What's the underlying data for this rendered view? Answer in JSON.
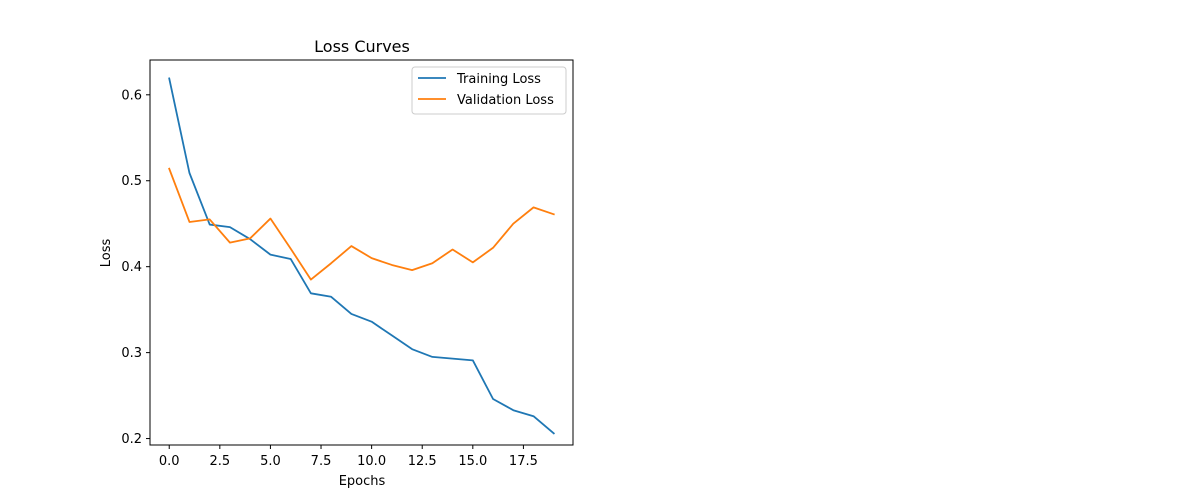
{
  "chart_data": {
    "type": "line",
    "title": "Loss Curves",
    "xlabel": "Epochs",
    "ylabel": "Loss",
    "xlim": [
      -0.95,
      19.95
    ],
    "ylim": [
      0.1925,
      0.6405
    ],
    "xticks": [
      0,
      2.5,
      5,
      7.5,
      10,
      12.5,
      15,
      17.5
    ],
    "xtick_labels": [
      "0.0",
      "2.5",
      "5.0",
      "7.5",
      "10.0",
      "12.5",
      "15.0",
      "17.5"
    ],
    "yticks": [
      0.2,
      0.3,
      0.4,
      0.5,
      0.6
    ],
    "ytick_labels": [
      "0.2",
      "0.3",
      "0.4",
      "0.5",
      "0.6"
    ],
    "grid": false,
    "legend_position": "top-right",
    "x": [
      0,
      1,
      2,
      3,
      4,
      5,
      6,
      7,
      8,
      9,
      10,
      11,
      12,
      13,
      14,
      15,
      16,
      17,
      18,
      19
    ],
    "series": [
      {
        "name": "Training Loss",
        "color": "#1f77b4",
        "values": [
          0.619,
          0.509,
          0.449,
          0.446,
          0.432,
          0.414,
          0.409,
          0.369,
          0.365,
          0.345,
          0.336,
          0.32,
          0.304,
          0.295,
          0.293,
          0.291,
          0.246,
          0.233,
          0.226,
          0.206
        ]
      },
      {
        "name": "Validation Loss",
        "color": "#ff7f0e",
        "values": [
          0.514,
          0.452,
          0.455,
          0.428,
          0.433,
          0.456,
          0.421,
          0.385,
          0.404,
          0.424,
          0.41,
          0.402,
          0.396,
          0.404,
          0.42,
          0.405,
          0.422,
          0.45,
          0.469,
          0.461
        ]
      }
    ]
  }
}
